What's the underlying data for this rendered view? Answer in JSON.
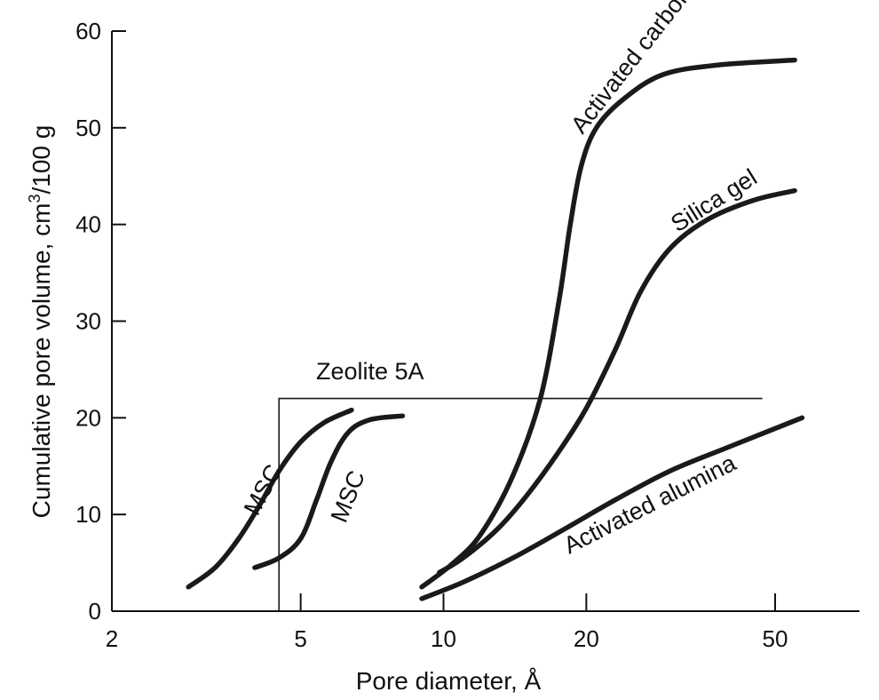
{
  "chart_data": {
    "type": "line",
    "xlabel": "Pore diameter, Å",
    "ylabel_parts": [
      "Cumulative pore volume, cm",
      "3",
      "/100 g"
    ],
    "x_scale": "log",
    "xlim": [
      2,
      70
    ],
    "ylim": [
      0,
      60
    ],
    "x_ticks": [
      2,
      5,
      10,
      20,
      50
    ],
    "y_ticks": [
      0,
      10,
      20,
      30,
      40,
      50,
      60
    ],
    "grid": false,
    "series": [
      {
        "name": "MSC",
        "x": [
          2.9,
          3.3,
          3.7,
          4.1,
          4.5,
          5.0,
          5.6,
          6.4
        ],
        "y": [
          2.5,
          4.5,
          7.5,
          11.0,
          14.5,
          17.5,
          19.5,
          20.8
        ]
      },
      {
        "name": "MSC",
        "x": [
          4.0,
          4.5,
          5.0,
          5.4,
          5.8,
          6.3,
          7.0,
          8.2
        ],
        "y": [
          4.5,
          5.5,
          7.5,
          11.5,
          15.5,
          18.5,
          19.8,
          20.2
        ]
      },
      {
        "name": "Activated carbon",
        "x": [
          9.0,
          10.5,
          12.0,
          14.0,
          16.0,
          17.5,
          18.5,
          19.5,
          21.0,
          24.0,
          29.0,
          38.0,
          55.0
        ],
        "y": [
          2.5,
          5.0,
          8.0,
          14.0,
          22.0,
          32.0,
          40.0,
          46.0,
          50.0,
          53.0,
          55.5,
          56.5,
          57.0
        ]
      },
      {
        "name": "Silica gel",
        "x": [
          9.8,
          11.0,
          13.0,
          15.0,
          17.5,
          20.0,
          23.0,
          26.0,
          30.0,
          36.0,
          45.0,
          55.0
        ],
        "y": [
          4.0,
          5.5,
          8.5,
          12.0,
          16.5,
          21.0,
          27.0,
          33.0,
          37.5,
          40.5,
          42.5,
          43.5
        ]
      },
      {
        "name": "Activated alumina",
        "x": [
          9.0,
          11.0,
          14.0,
          18.0,
          23.0,
          30.0,
          40.0,
          57.0
        ],
        "y": [
          1.3,
          3.0,
          5.5,
          8.5,
          11.5,
          14.5,
          17.0,
          20.0
        ]
      }
    ],
    "zeolite_step": {
      "name": "Zeolite 5A",
      "x": [
        4.5,
        4.5,
        47.0
      ],
      "y": [
        0,
        22.0,
        22.0
      ]
    }
  }
}
